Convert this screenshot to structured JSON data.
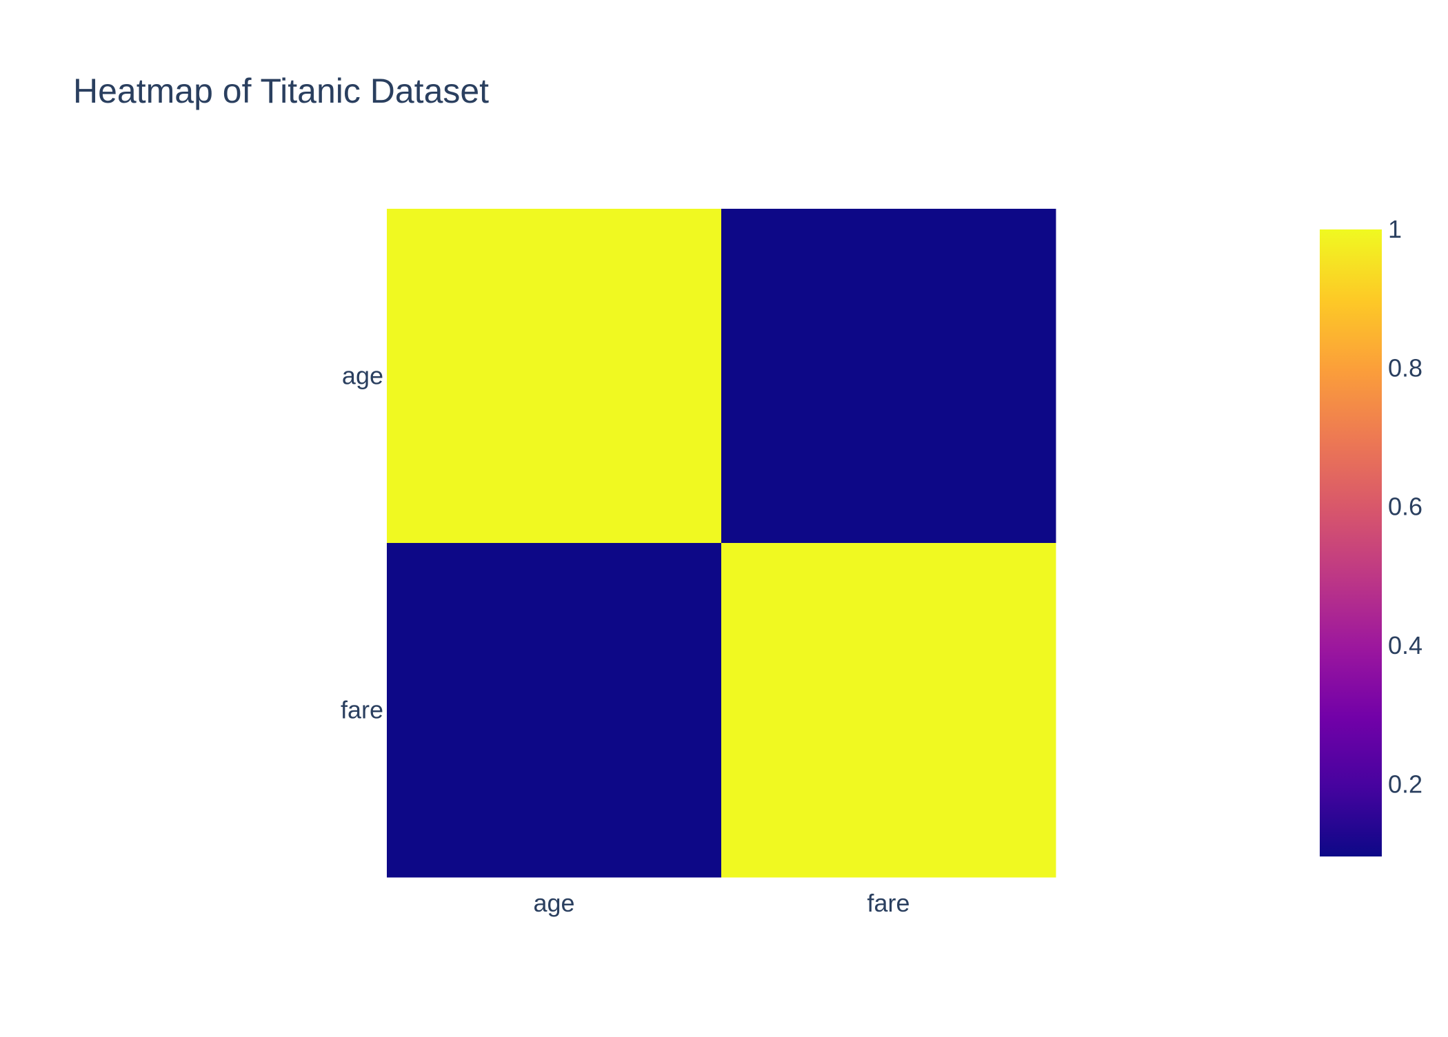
{
  "chart_data": {
    "type": "heatmap",
    "title": "Heatmap of Titanic Dataset",
    "x_categories": [
      "age",
      "fare"
    ],
    "y_categories": [
      "age",
      "fare"
    ],
    "z": [
      [
        1.0,
        0.096
      ],
      [
        0.096,
        1.0
      ]
    ],
    "zrange": [
      0.096,
      1.0
    ],
    "colorscale": "Plasma",
    "colorscale_stops": [
      "#0d0887",
      "#46039f",
      "#7201a8",
      "#9c179e",
      "#bd3786",
      "#d8576b",
      "#ed7953",
      "#fb9f3a",
      "#fdca26",
      "#f0f921"
    ],
    "colorbar": {
      "tick_values": [
        0.2,
        0.4,
        0.6,
        0.8,
        1
      ],
      "tick_labels": [
        "0.2",
        "0.4",
        "0.6",
        "0.8",
        "1"
      ]
    },
    "text_color": "#2a3f5f"
  }
}
